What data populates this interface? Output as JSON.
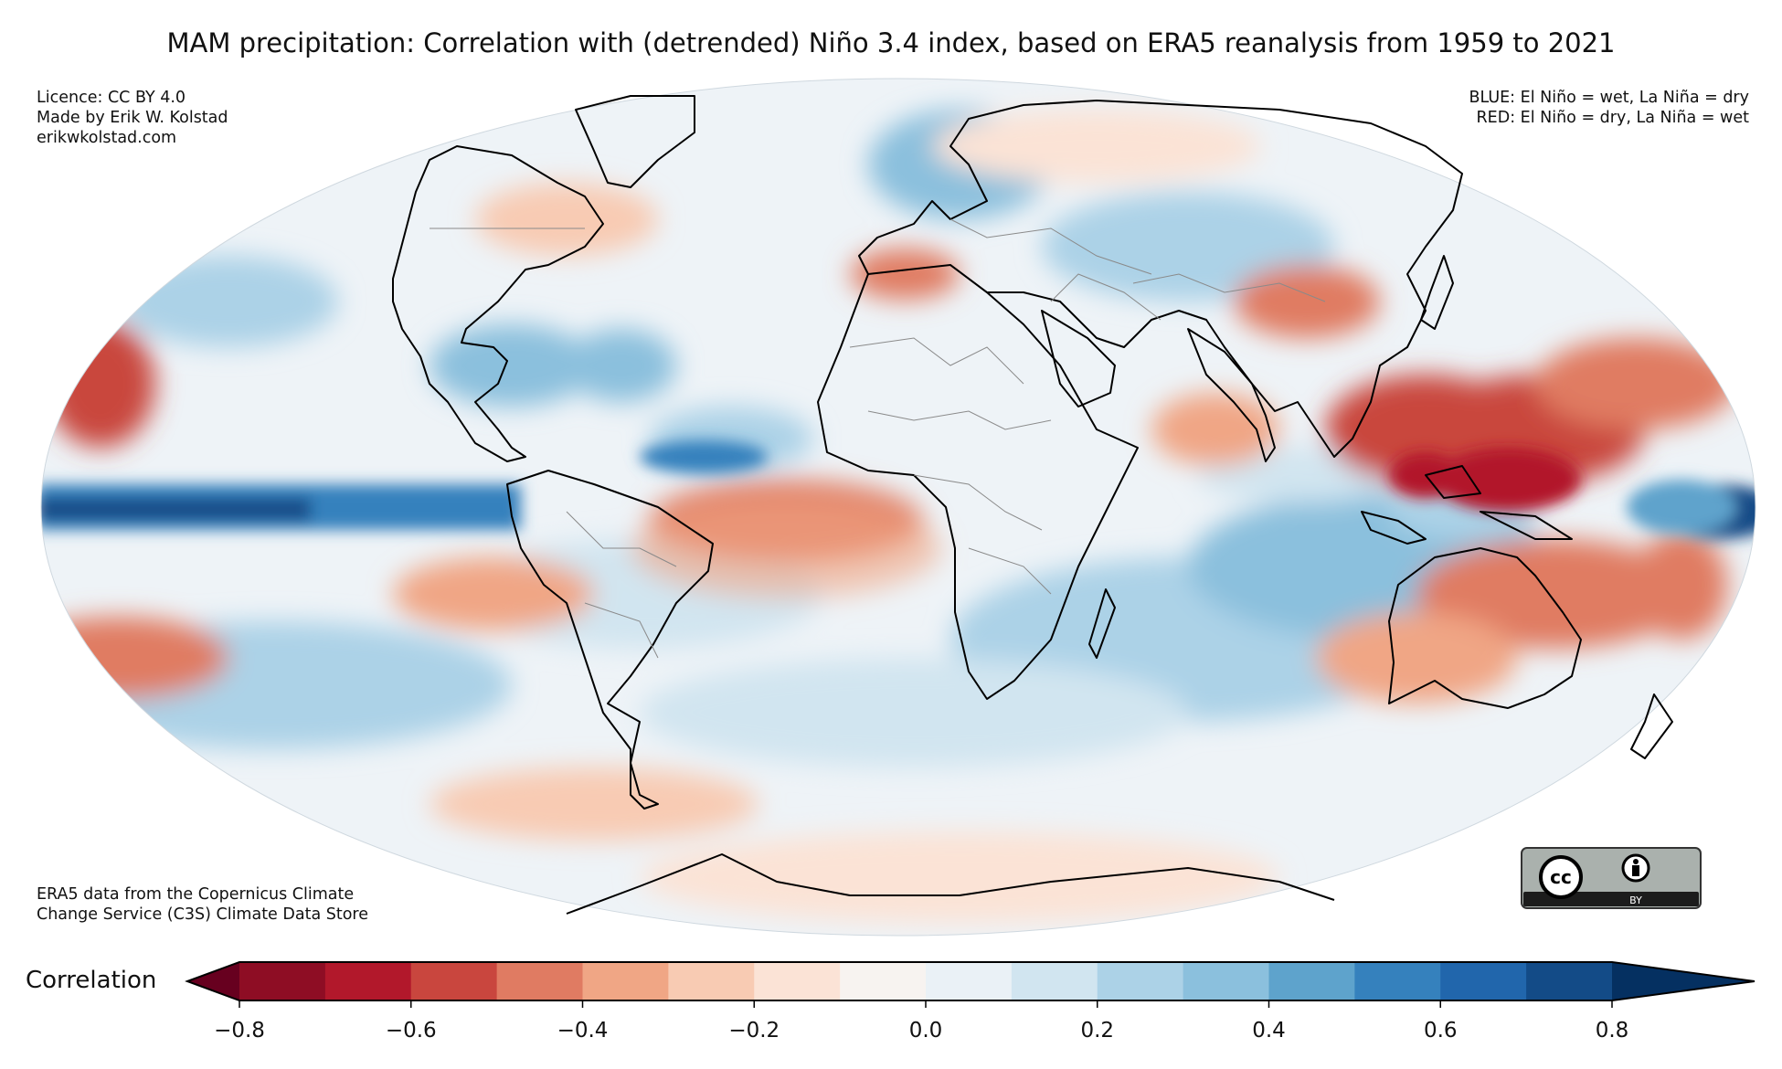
{
  "title": "MAM precipitation: Correlation with (detrended) Niño 3.4 index, based on ERA5 reanalysis from 1959 to 2021",
  "notes": {
    "top_left": [
      "Licence: CC BY 4.0",
      "Made by Erik W. Kolstad",
      "erikwkolstad.com"
    ],
    "top_right": [
      "BLUE: El Niño = wet, La Niña = dry",
      "RED: El Niño = dry, La Niña = wet"
    ],
    "bottom_left": [
      "ERA5 data from the Copernicus Climate",
      "Change Service (C3S) Climate Data Store"
    ]
  },
  "badge": {
    "icon": "cc-by-badge-icon",
    "text": "BY"
  },
  "colorbar": {
    "label": "Correlation",
    "ticks": [
      "−0.8",
      "−0.6",
      "−0.4",
      "−0.2",
      "0.0",
      "0.2",
      "0.4",
      "0.6",
      "0.8"
    ],
    "tick_values": [
      -0.8,
      -0.6,
      -0.4,
      -0.2,
      0.0,
      0.2,
      0.4,
      0.6,
      0.8
    ],
    "range": [
      -0.9,
      0.9
    ],
    "extend": "both",
    "colors": [
      "#67001f",
      "#8e0d24",
      "#b2182b",
      "#c9463e",
      "#e07b62",
      "#f0a685",
      "#f8cbb3",
      "#fbe3d6",
      "#f7f3f0",
      "#eaf1f6",
      "#d1e5f0",
      "#acd2e7",
      "#8bc0dd",
      "#5ea3cc",
      "#3581bd",
      "#2166ac",
      "#134b87",
      "#053061"
    ]
  },
  "map": {
    "projection": "Mollweide",
    "color_scale": {
      "strong_negative": "#b2182b",
      "negative": "#e07b62",
      "weak_negative": "#f8cbb3",
      "neutral": "#f7f3f0",
      "weak_positive": "#d1e5f0",
      "positive": "#8bc0dd",
      "strong_positive": "#2166ac"
    }
  }
}
